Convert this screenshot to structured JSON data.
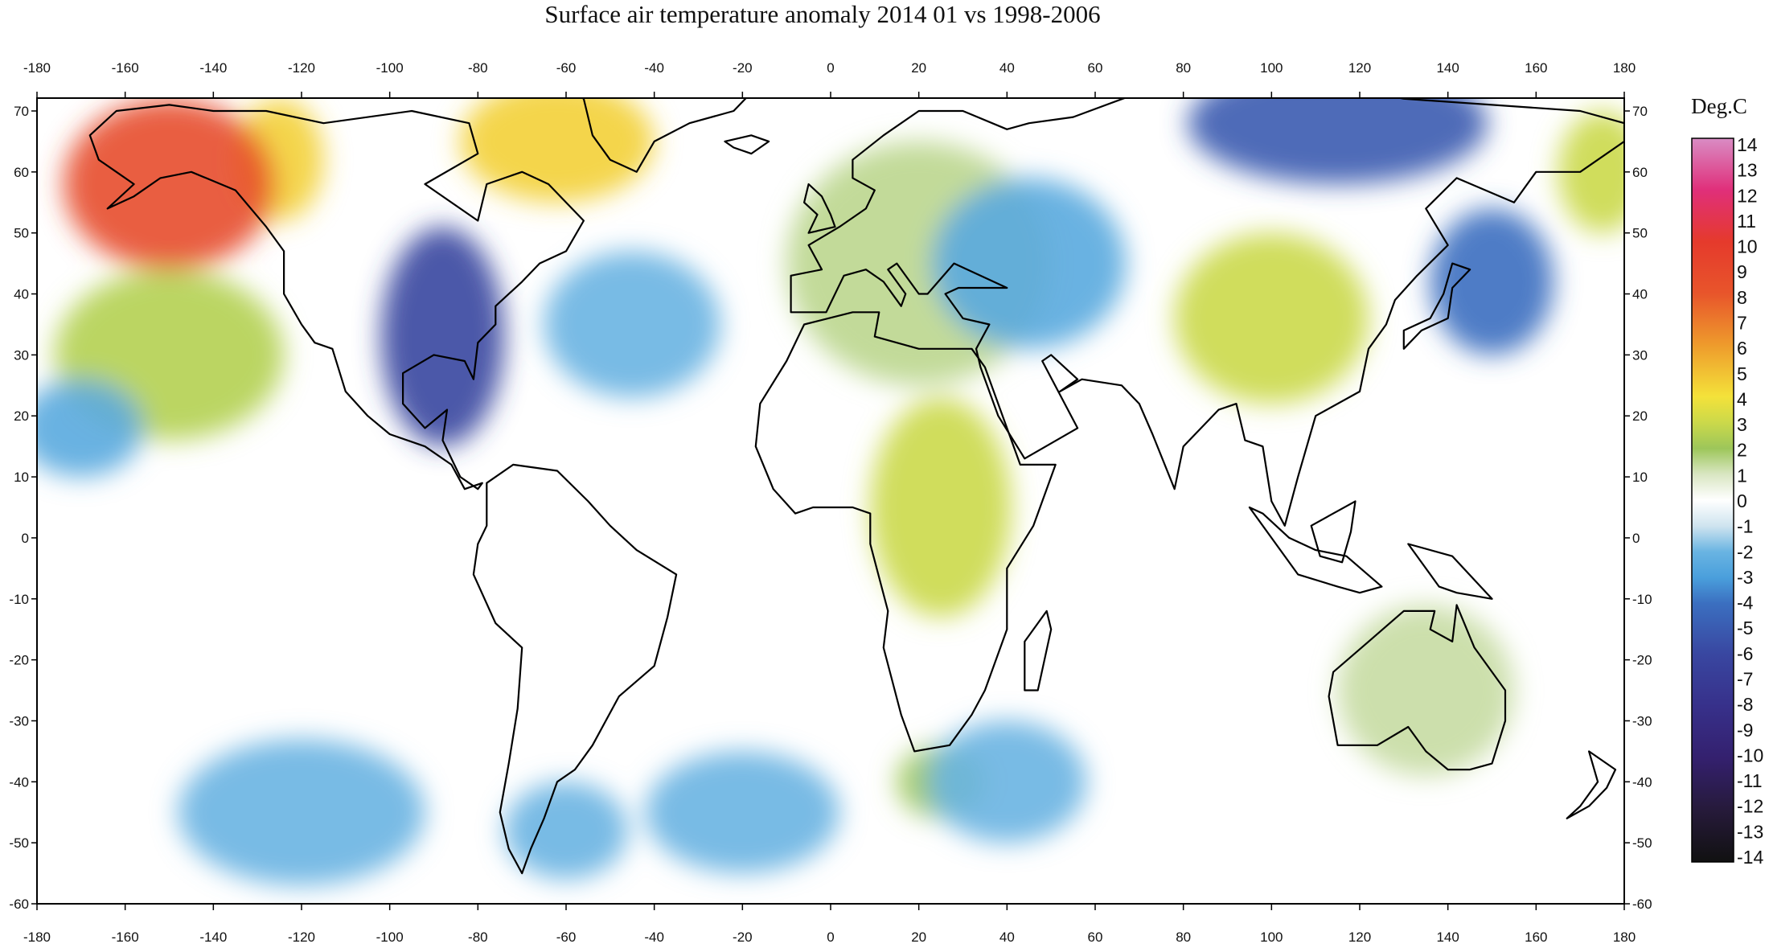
{
  "chart_data": {
    "type": "heatmap",
    "title": "Surface air temperature anomaly 2014 01 vs 1998-2006",
    "colorbar_unit": "Deg.C",
    "x_ticks": [
      -180,
      -160,
      -140,
      -120,
      -100,
      -80,
      -60,
      -40,
      -20,
      0,
      20,
      40,
      60,
      80,
      100,
      120,
      140,
      160,
      180
    ],
    "y_ticks": [
      70,
      60,
      50,
      40,
      30,
      20,
      10,
      0,
      -10,
      -20,
      -30,
      -40,
      -50,
      -60
    ],
    "xlim": [
      -180,
      180
    ],
    "ylim": [
      -60,
      72
    ],
    "colorbar_levels": [
      14,
      13,
      12,
      11,
      10,
      9,
      8,
      7,
      6,
      5,
      4,
      3,
      2,
      1,
      0,
      -1,
      -2,
      -3,
      -4,
      -5,
      -6,
      -7,
      -8,
      -9,
      -10,
      -11,
      -12,
      -13,
      -14
    ],
    "colorbar_range": [
      -14,
      14
    ],
    "color_stops": [
      {
        "value": 14,
        "color": "#d98cc4"
      },
      {
        "value": 12,
        "color": "#e02f7a"
      },
      {
        "value": 10,
        "color": "#e53a2c"
      },
      {
        "value": 8,
        "color": "#e8552b"
      },
      {
        "value": 6,
        "color": "#ee9b2c"
      },
      {
        "value": 4,
        "color": "#f4e23a"
      },
      {
        "value": 3,
        "color": "#cbd94a"
      },
      {
        "value": 2,
        "color": "#9dc65a"
      },
      {
        "value": 1,
        "color": "#d9e6c2"
      },
      {
        "value": 0,
        "color": "#ffffff"
      },
      {
        "value": -1,
        "color": "#cfe4ef"
      },
      {
        "value": -2,
        "color": "#69b4e2"
      },
      {
        "value": -3,
        "color": "#4a9fdc"
      },
      {
        "value": -4,
        "color": "#3b6fc0"
      },
      {
        "value": -6,
        "color": "#3946a0"
      },
      {
        "value": -8,
        "color": "#37308a"
      },
      {
        "value": -10,
        "color": "#34206e"
      },
      {
        "value": -12,
        "color": "#261a3a"
      },
      {
        "value": -14,
        "color": "#111111"
      }
    ],
    "anomaly_regions": [
      {
        "name": "Alaska / NE Pacific",
        "lon": -150,
        "lat": 58,
        "value": 8.5
      },
      {
        "name": "Yukon",
        "lon": -125,
        "lat": 62,
        "value": 4.5
      },
      {
        "name": "Greenland / NE Canada",
        "lon": -62,
        "lat": 65,
        "value": 4.5
      },
      {
        "name": "North Pacific",
        "lon": -150,
        "lat": 30,
        "value": 2.5
      },
      {
        "name": "Eastern North America",
        "lon": -88,
        "lat": 33,
        "value": -6
      },
      {
        "name": "Western Russia",
        "lon": 45,
        "lat": 45,
        "value": -2.5
      },
      {
        "name": "Siberia",
        "lon": 115,
        "lat": 68,
        "value": -5
      },
      {
        "name": "Mongolia / North China",
        "lon": 100,
        "lat": 36,
        "value": 3
      },
      {
        "name": "Europe",
        "lon": 20,
        "lat": 45,
        "value": 1.5
      },
      {
        "name": "Central Africa",
        "lon": 25,
        "lat": 5,
        "value": 3
      },
      {
        "name": "Southern Ocean off South Africa",
        "lon": 25,
        "lat": -40,
        "value": 2
      },
      {
        "name": "Australia",
        "lon": 135,
        "lat": -25,
        "value": 1.3
      },
      {
        "name": "North Atlantic",
        "lon": -45,
        "lat": 35,
        "value": -2
      },
      {
        "name": "South Atlantic",
        "lon": -20,
        "lat": -45,
        "value": -2
      },
      {
        "name": "South Pacific",
        "lon": -120,
        "lat": -45,
        "value": -2
      },
      {
        "name": "Northwest Pacific",
        "lon": 150,
        "lat": 42,
        "value": -4
      },
      {
        "name": "Southern Ocean south of Africa",
        "lon": 40,
        "lat": -40,
        "value": -2
      },
      {
        "name": "Western North Pacific",
        "lon": -170,
        "lat": 18,
        "value": -2.5
      },
      {
        "name": "South Atlantic off Argentina",
        "lon": -60,
        "lat": -48,
        "value": -2
      },
      {
        "name": "Bering Sea",
        "lon": 175,
        "lat": 60,
        "value": 3
      }
    ]
  }
}
